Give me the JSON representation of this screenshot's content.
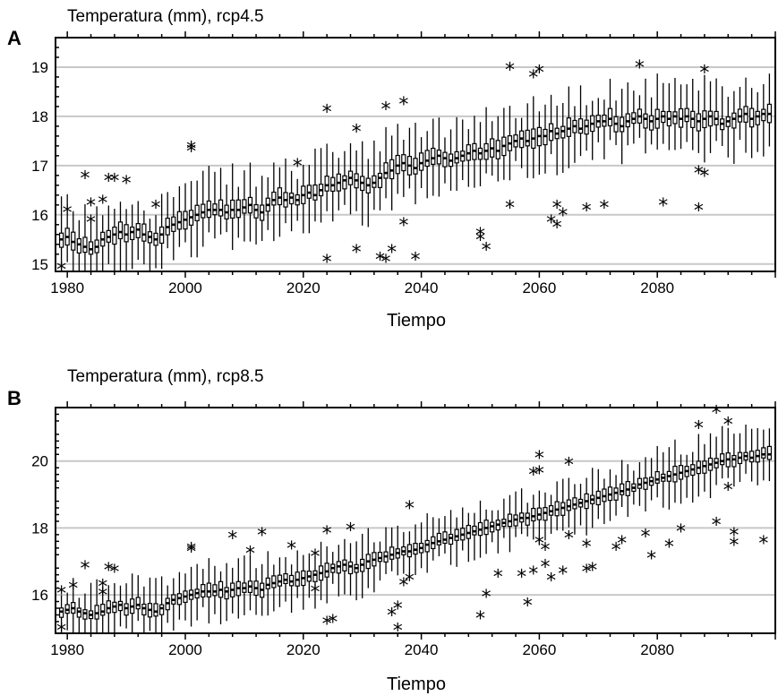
{
  "chart_data": [
    {
      "type": "box",
      "panel_label": "A",
      "title": "Temperatura (mm), rcp4.5",
      "xlabel": "Tiempo",
      "ylabel": "",
      "xlim": [
        1978,
        2100
      ],
      "ylim": [
        14.85,
        19.6
      ],
      "x_ticks": [
        1980,
        2000,
        2020,
        2040,
        2060,
        2080
      ],
      "y_ticks": [
        15,
        16,
        17,
        18,
        19
      ],
      "grid": "horizontal",
      "years_start": 1979,
      "years_end": 2099,
      "medians": [
        15.5,
        15.55,
        15.45,
        15.4,
        15.35,
        15.3,
        15.35,
        15.5,
        15.55,
        15.6,
        15.65,
        15.6,
        15.65,
        15.7,
        15.6,
        15.55,
        15.5,
        15.6,
        15.75,
        15.8,
        15.85,
        15.9,
        15.95,
        16.0,
        16.05,
        16.1,
        16.1,
        16.1,
        16.05,
        16.1,
        16.1,
        16.15,
        16.2,
        16.1,
        16.05,
        16.2,
        16.3,
        16.35,
        16.3,
        16.35,
        16.3,
        16.4,
        16.45,
        16.4,
        16.5,
        16.6,
        16.6,
        16.65,
        16.7,
        16.75,
        16.7,
        16.65,
        16.6,
        16.65,
        16.75,
        16.85,
        16.9,
        17.0,
        17.05,
        17.0,
        16.95,
        17.05,
        17.1,
        17.15,
        17.2,
        17.15,
        17.1,
        17.15,
        17.2,
        17.25,
        17.3,
        17.25,
        17.3,
        17.35,
        17.3,
        17.4,
        17.45,
        17.5,
        17.55,
        17.5,
        17.55,
        17.6,
        17.6,
        17.7,
        17.65,
        17.7,
        17.75,
        17.8,
        17.75,
        17.8,
        17.85,
        17.9,
        17.9,
        17.95,
        17.85,
        17.8,
        17.9,
        17.95,
        18.0,
        17.95,
        17.9,
        17.95,
        18.0,
        17.95,
        18.0,
        17.95,
        18.0,
        17.95,
        17.9,
        17.95,
        18.0,
        17.95,
        17.85,
        17.9,
        17.95,
        18.0,
        18.05,
        17.95,
        18.0,
        18.05,
        18.05
      ],
      "outliers": [
        [
          1979,
          14.9
        ],
        [
          1980,
          16.05
        ],
        [
          1983,
          16.75
        ],
        [
          1984,
          16.2
        ],
        [
          1984,
          15.85
        ],
        [
          1986,
          16.25
        ],
        [
          1987,
          16.7
        ],
        [
          1988,
          16.7
        ],
        [
          1990,
          16.65
        ],
        [
          1995,
          16.15
        ],
        [
          2001,
          17.35
        ],
        [
          2001,
          17.3
        ],
        [
          2019,
          17.0
        ],
        [
          2024,
          15.05
        ],
        [
          2024,
          18.1
        ],
        [
          2029,
          15.25
        ],
        [
          2029,
          17.7
        ],
        [
          2033,
          15.1
        ],
        [
          2034,
          15.05
        ],
        [
          2034,
          18.15
        ],
        [
          2035,
          15.25
        ],
        [
          2037,
          15.8
        ],
        [
          2037,
          18.25
        ],
        [
          2039,
          15.1
        ],
        [
          2050,
          15.6
        ],
        [
          2050,
          15.5
        ],
        [
          2051,
          15.3
        ],
        [
          2055,
          18.95
        ],
        [
          2055,
          16.15
        ],
        [
          2059,
          18.8
        ],
        [
          2060,
          18.9
        ],
        [
          2062,
          15.85
        ],
        [
          2063,
          15.75
        ],
        [
          2063,
          16.15
        ],
        [
          2064,
          16.0
        ],
        [
          2068,
          16.1
        ],
        [
          2071,
          16.15
        ],
        [
          2077,
          19.0
        ],
        [
          2081,
          16.2
        ],
        [
          2087,
          16.1
        ],
        [
          2087,
          16.85
        ],
        [
          2088,
          16.8
        ],
        [
          2088,
          18.9
        ]
      ]
    },
    {
      "type": "box",
      "panel_label": "B",
      "title": "Temperatura (mm), rcp8.5",
      "xlabel": "Tiempo",
      "ylabel": "",
      "xlim": [
        1978,
        2100
      ],
      "ylim": [
        14.85,
        21.6
      ],
      "x_ticks": [
        1980,
        2000,
        2020,
        2040,
        2060,
        2080
      ],
      "y_ticks": [
        16,
        18,
        20
      ],
      "grid": "horizontal",
      "years_start": 1979,
      "years_end": 2099,
      "medians": [
        15.5,
        15.55,
        15.6,
        15.5,
        15.45,
        15.4,
        15.45,
        15.5,
        15.6,
        15.65,
        15.7,
        15.6,
        15.65,
        15.7,
        15.6,
        15.55,
        15.5,
        15.6,
        15.75,
        15.85,
        15.9,
        15.95,
        16.0,
        16.05,
        16.1,
        16.1,
        16.1,
        16.15,
        16.1,
        16.15,
        16.2,
        16.2,
        16.25,
        16.2,
        16.15,
        16.3,
        16.35,
        16.4,
        16.45,
        16.4,
        16.45,
        16.5,
        16.55,
        16.6,
        16.65,
        16.7,
        16.8,
        16.85,
        16.9,
        16.85,
        16.8,
        16.9,
        17.0,
        17.05,
        17.1,
        17.15,
        17.2,
        17.25,
        17.3,
        17.3,
        17.35,
        17.4,
        17.5,
        17.55,
        17.6,
        17.65,
        17.7,
        17.75,
        17.8,
        17.85,
        17.9,
        17.95,
        18.0,
        18.05,
        18.1,
        18.15,
        18.2,
        18.25,
        18.3,
        18.3,
        18.35,
        18.4,
        18.45,
        18.5,
        18.55,
        18.6,
        18.65,
        18.7,
        18.75,
        18.8,
        18.85,
        18.9,
        18.95,
        19.0,
        19.05,
        19.1,
        19.15,
        19.2,
        19.3,
        19.35,
        19.4,
        19.45,
        19.5,
        19.55,
        19.6,
        19.65,
        19.7,
        19.75,
        19.8,
        19.85,
        19.9,
        19.95,
        20.0,
        20.05,
        20.05,
        20.1,
        20.15,
        20.1,
        20.15,
        20.2,
        20.2
      ],
      "outliers": [
        [
          1979,
          16.05
        ],
        [
          1979,
          14.95
        ],
        [
          1981,
          16.2
        ],
        [
          1983,
          16.8
        ],
        [
          1986,
          16.25
        ],
        [
          1986,
          16.0
        ],
        [
          1987,
          16.75
        ],
        [
          1988,
          16.7
        ],
        [
          2001,
          17.35
        ],
        [
          2001,
          17.3
        ],
        [
          2008,
          17.7
        ],
        [
          2011,
          17.25
        ],
        [
          2013,
          17.8
        ],
        [
          2018,
          17.4
        ],
        [
          2022,
          17.15
        ],
        [
          2022,
          16.1
        ],
        [
          2024,
          15.15
        ],
        [
          2025,
          15.2
        ],
        [
          2024,
          17.85
        ],
        [
          2028,
          17.95
        ],
        [
          2035,
          15.4
        ],
        [
          2036,
          15.6
        ],
        [
          2036,
          14.95
        ],
        [
          2037,
          16.3
        ],
        [
          2038,
          16.45
        ],
        [
          2038,
          18.6
        ],
        [
          2050,
          15.3
        ],
        [
          2051,
          15.95
        ],
        [
          2053,
          16.55
        ],
        [
          2057,
          16.55
        ],
        [
          2058,
          15.7
        ],
        [
          2059,
          16.65
        ],
        [
          2059,
          19.6
        ],
        [
          2060,
          20.1
        ],
        [
          2060,
          19.65
        ],
        [
          2060,
          17.55
        ],
        [
          2061,
          16.85
        ],
        [
          2061,
          17.35
        ],
        [
          2062,
          16.45
        ],
        [
          2064,
          16.65
        ],
        [
          2065,
          17.7
        ],
        [
          2065,
          19.9
        ],
        [
          2068,
          16.7
        ],
        [
          2069,
          16.75
        ],
        [
          2068,
          17.45
        ],
        [
          2073,
          17.35
        ],
        [
          2074,
          17.55
        ],
        [
          2078,
          17.75
        ],
        [
          2079,
          17.1
        ],
        [
          2082,
          17.45
        ],
        [
          2084,
          17.9
        ],
        [
          2087,
          21.0
        ],
        [
          2090,
          21.45
        ],
        [
          2090,
          18.1
        ],
        [
          2092,
          19.15
        ],
        [
          2092,
          21.1
        ],
        [
          2093,
          17.5
        ],
        [
          2093,
          17.8
        ],
        [
          2098,
          17.55
        ]
      ]
    }
  ]
}
